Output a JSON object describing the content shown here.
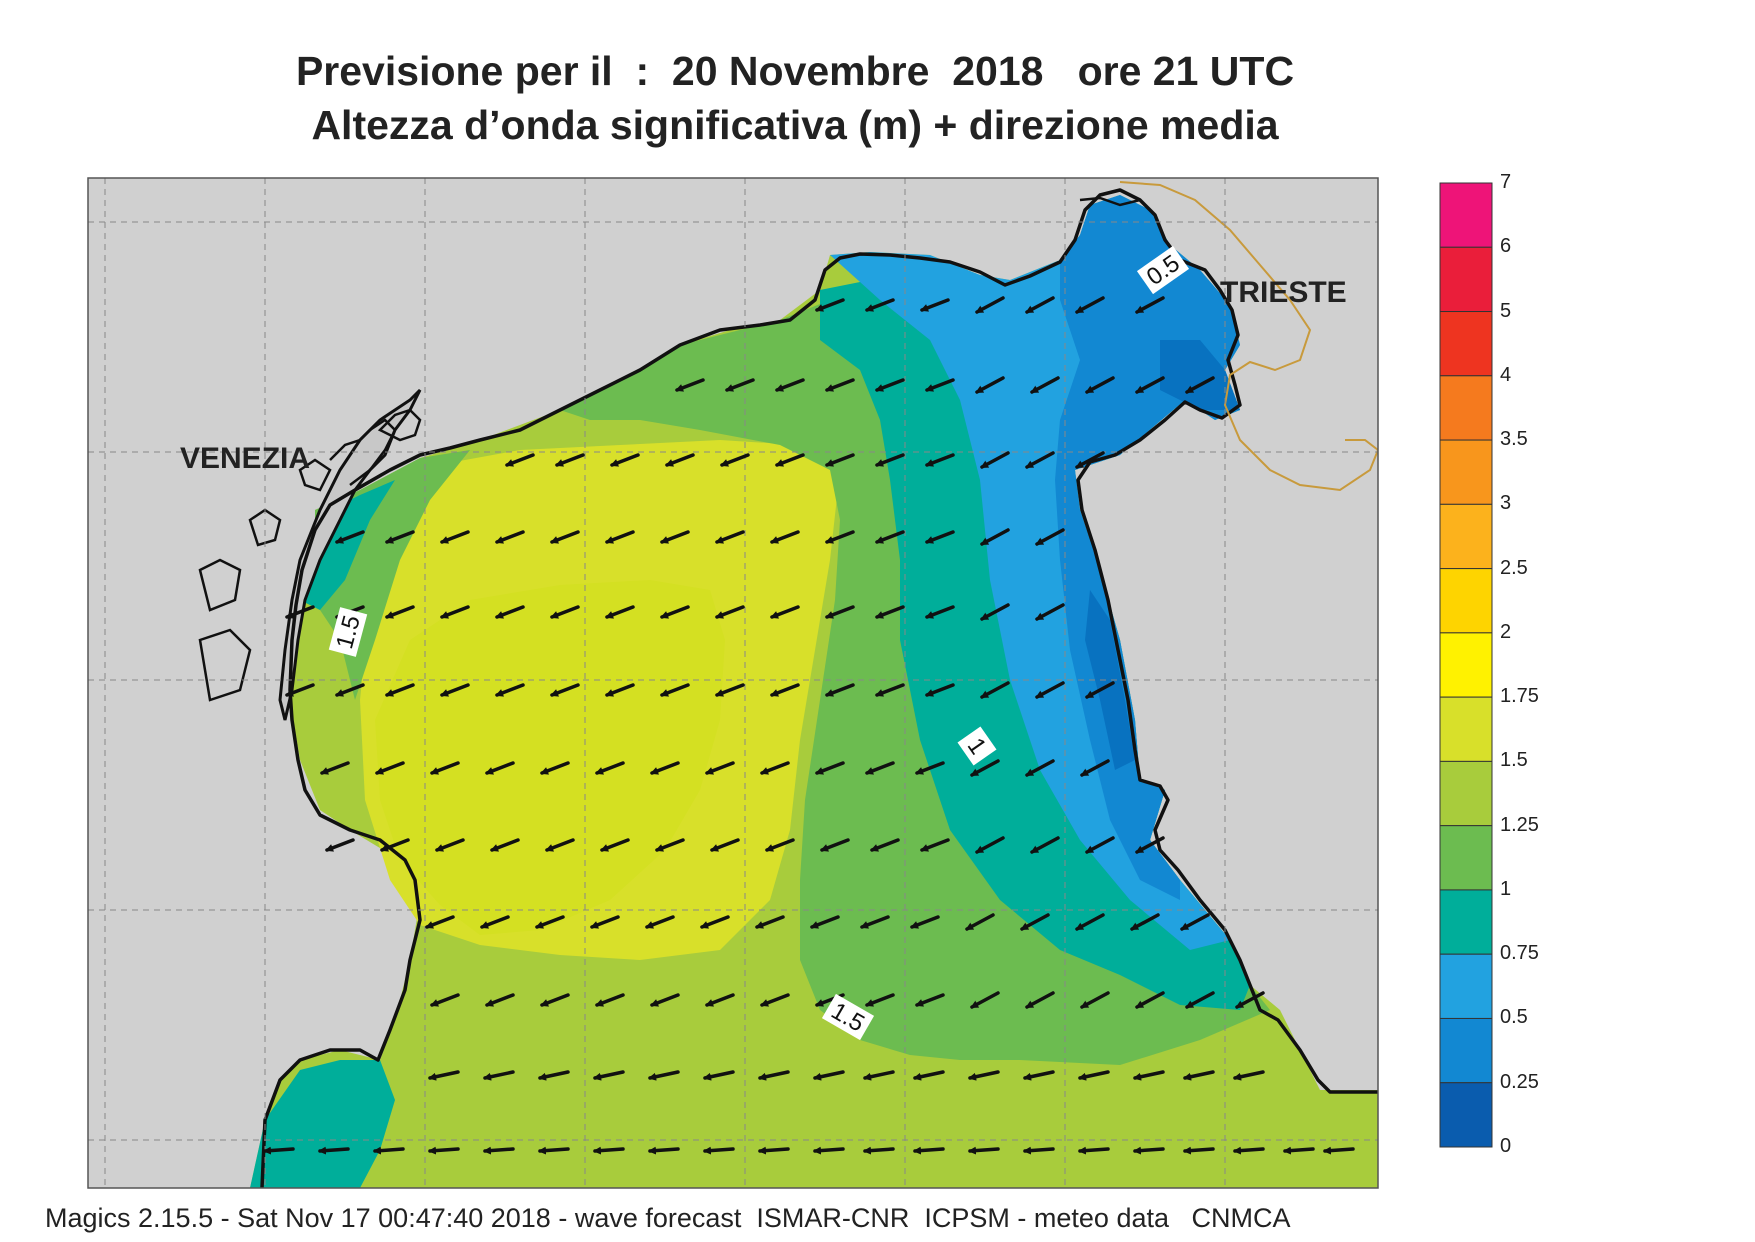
{
  "header": {
    "title_line1": "Previsione per il  :  20 Novembre  2018   ore 21 UTC",
    "title_line2": "Altezza d’onda significativa (m) + direzione media"
  },
  "map": {
    "cities": {
      "venezia": "VENEZIA",
      "trieste": "TRIESTE"
    },
    "contour_labels": {
      "c1": "1.5",
      "c2": "1",
      "c3": "1.5",
      "c4": "0.5"
    },
    "land_color": "#d0d0d0",
    "coast_color": "#111111",
    "border_color": "#c89a3c",
    "wave_direction": "from north-east (arrows point south-west)"
  },
  "legend": {
    "unit": "m",
    "levels": [
      {
        "label": "7",
        "color": "#ee1478"
      },
      {
        "label": "6",
        "color": "#ea1e3a"
      },
      {
        "label": "5",
        "color": "#ee3420"
      },
      {
        "label": "4",
        "color": "#f57a1e"
      },
      {
        "label": "3.5",
        "color": "#f8961c"
      },
      {
        "label": "3",
        "color": "#fcb21c"
      },
      {
        "label": "2.5",
        "color": "#fed400"
      },
      {
        "label": "2",
        "color": "#fff200"
      },
      {
        "label": "1.75",
        "color": "#d8e02a"
      },
      {
        "label": "1.5",
        "color": "#a8cc3c"
      },
      {
        "label": "1.25",
        "color": "#6cbc50"
      },
      {
        "label": "1",
        "color": "#00ae9a"
      },
      {
        "label": "0.75",
        "color": "#22a2e0"
      },
      {
        "label": "0.5",
        "color": "#1288d2"
      },
      {
        "label": "0.25",
        "color": "#0872c0"
      },
      {
        "label": "0",
        "color": "#0a5cae"
      }
    ]
  },
  "footer": {
    "text": "Magics 2.15.5 - Sat Nov 17 00:47:40 2018 - wave forecast  ISMAR-CNR  ICPSM - meteo data   CNMCA"
  }
}
